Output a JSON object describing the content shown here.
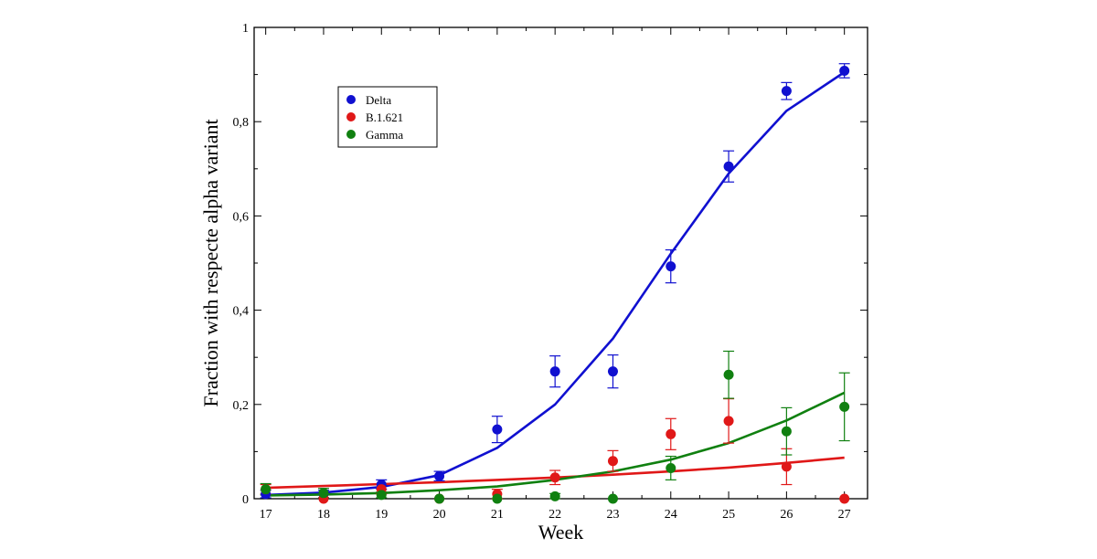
{
  "chart_data": {
    "type": "scatter",
    "title": "",
    "xlabel": "Week",
    "ylabel": "Fraction with respecte alpha variant",
    "xlim": [
      16.8,
      27.4
    ],
    "ylim": [
      0,
      1
    ],
    "x_ticks": [
      17,
      18,
      19,
      20,
      21,
      22,
      23,
      24,
      25,
      26,
      27
    ],
    "x_tick_labels": [
      "17",
      "18",
      "19",
      "20",
      "21",
      "22",
      "23",
      "24",
      "25",
      "26",
      "27"
    ],
    "y_ticks": [
      0,
      0.2,
      0.4,
      0.6,
      0.8,
      1
    ],
    "y_tick_labels": [
      "0",
      "0,2",
      "0,4",
      "0,6",
      "0,8",
      "1"
    ],
    "grid": false,
    "legend_position": "top-left",
    "series": [
      {
        "name": "Delta",
        "color": "#1010d0",
        "x": [
          17,
          18,
          19,
          20,
          21,
          22,
          23,
          24,
          25,
          26,
          27
        ],
        "y": [
          0.01,
          0.01,
          0.03,
          0.048,
          0.147,
          0.27,
          0.27,
          0.493,
          0.705,
          0.865,
          0.908
        ],
        "err": [
          0.008,
          0.008,
          0.01,
          0.01,
          0.028,
          0.033,
          0.035,
          0.035,
          0.033,
          0.018,
          0.015
        ],
        "fit_y": [
          0.008,
          0.013,
          0.025,
          0.05,
          0.108,
          0.2,
          0.34,
          0.52,
          0.69,
          0.823,
          0.905
        ]
      },
      {
        "name": "B.1.621",
        "color": "#e01818",
        "x": [
          17,
          18,
          19,
          20,
          21,
          22,
          23,
          24,
          25,
          26,
          27
        ],
        "y": [
          0.02,
          0.0,
          0.02,
          0.0,
          0.01,
          0.045,
          0.08,
          0.137,
          0.165,
          0.068,
          0.0
        ],
        "err": [
          0.01,
          0.0,
          0.01,
          0.0,
          0.01,
          0.015,
          0.022,
          0.033,
          0.047,
          0.038,
          0.0
        ],
        "fit_y": [
          0.023,
          0.027,
          0.031,
          0.035,
          0.04,
          0.045,
          0.051,
          0.058,
          0.066,
          0.076,
          0.087
        ]
      },
      {
        "name": "Gamma",
        "color": "#108010",
        "x": [
          17,
          18,
          19,
          20,
          21,
          22,
          23,
          24,
          25,
          26,
          27
        ],
        "y": [
          0.02,
          0.012,
          0.008,
          0.0,
          0.0,
          0.005,
          0.0,
          0.065,
          0.263,
          0.143,
          0.195
        ],
        "err": [
          0.012,
          0.01,
          0.006,
          0.0,
          0.0,
          0.006,
          0.0,
          0.025,
          0.05,
          0.05,
          0.072
        ],
        "fit_y": [
          0.007,
          0.009,
          0.012,
          0.018,
          0.026,
          0.04,
          0.058,
          0.083,
          0.118,
          0.166,
          0.225
        ]
      }
    ]
  }
}
